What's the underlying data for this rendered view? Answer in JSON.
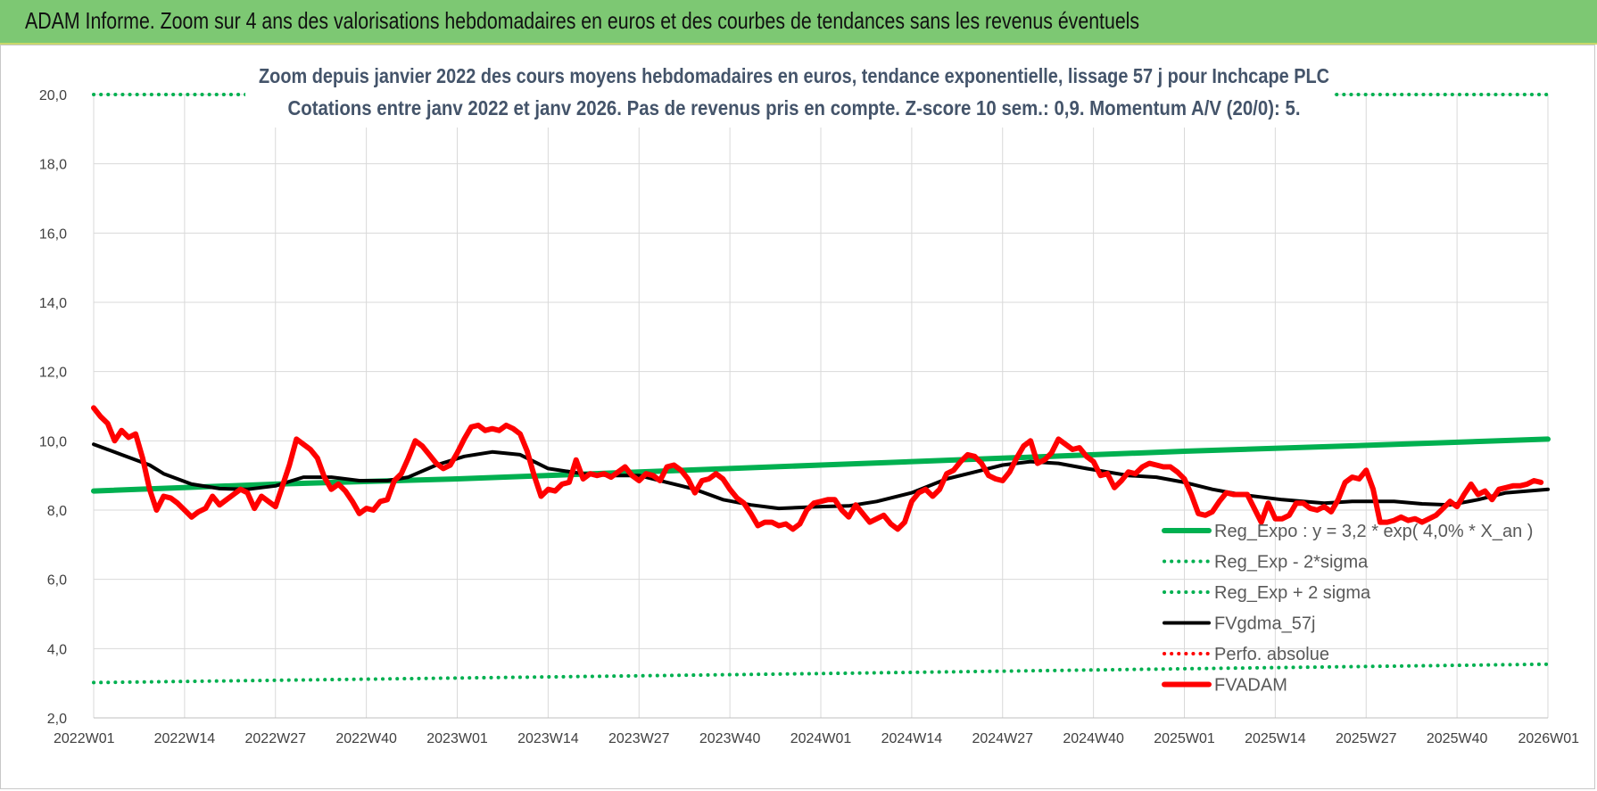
{
  "header": {
    "title": "ADAM Informe. Zoom sur 4 ans des valorisations hebdomadaires en euros et des courbes de tendances sans les revenus éventuels",
    "background": "#7dc873"
  },
  "chart_data": {
    "type": "line",
    "title": "Zoom depuis janvier 2022 des cours moyens hebdomadaires en euros, tendance exponentielle, lissage 57 j pour Inchcape PLC",
    "subtitle": "Cotations entre janv 2022 et janv 2026. Pas de revenus pris en compte. Z-score 10 sem.: 0,9. Momentum A/V (20/0): 5.",
    "xlabel": "",
    "ylabel": "",
    "ylim": [
      2.0,
      20.0
    ],
    "y_ticks": [
      "2,0",
      "4,0",
      "6,0",
      "8,0",
      "10,0",
      "12,0",
      "14,0",
      "16,0",
      "18,0",
      "20,0"
    ],
    "x_ticks": [
      "2022W01",
      "2022W14",
      "2022W27",
      "2022W40",
      "2023W01",
      "2023W14",
      "2023W27",
      "2023W40",
      "2024W01",
      "2024W14",
      "2024W27",
      "2024W40",
      "2025W01",
      "2025W14",
      "2025W27",
      "2025W40",
      "2026W01"
    ],
    "x_week_index": [
      0,
      13,
      26,
      39,
      52,
      65,
      78,
      91,
      104,
      117,
      130,
      143,
      156,
      169,
      182,
      195,
      208
    ],
    "grid": true,
    "legend_position": "bottom-right",
    "series": [
      {
        "name": "Reg_Expo : y = 3,2 * exp( 4,0% *  X_an )",
        "style": "solid-thick",
        "color": "#00b050",
        "points": [
          [
            0,
            8.55
          ],
          [
            26,
            8.75
          ],
          [
            52,
            8.9
          ],
          [
            78,
            9.1
          ],
          [
            104,
            9.3
          ],
          [
            130,
            9.5
          ],
          [
            156,
            9.7
          ],
          [
            182,
            9.87
          ],
          [
            208,
            10.05
          ]
        ]
      },
      {
        "name": "Reg_Exp - 2*sigma",
        "style": "dotted",
        "color": "#00b050",
        "points": [
          [
            0,
            3.02
          ],
          [
            52,
            3.15
          ],
          [
            104,
            3.28
          ],
          [
            156,
            3.42
          ],
          [
            208,
            3.55
          ]
        ]
      },
      {
        "name": "Reg_Exp + 2 sigma",
        "style": "dotted",
        "color": "#00b050",
        "points": [
          [
            0,
            20.0
          ],
          [
            208,
            20.0
          ]
        ]
      },
      {
        "name": "FVgdma_57j",
        "style": "solid",
        "color": "#000000",
        "points": [
          [
            0,
            9.9
          ],
          [
            4,
            9.6
          ],
          [
            8,
            9.3
          ],
          [
            10,
            9.05
          ],
          [
            14,
            8.75
          ],
          [
            18,
            8.62
          ],
          [
            22,
            8.6
          ],
          [
            26,
            8.7
          ],
          [
            30,
            8.95
          ],
          [
            34,
            8.95
          ],
          [
            38,
            8.85
          ],
          [
            42,
            8.85
          ],
          [
            45,
            8.95
          ],
          [
            49,
            9.3
          ],
          [
            53,
            9.55
          ],
          [
            57,
            9.68
          ],
          [
            61,
            9.6
          ],
          [
            65,
            9.2
          ],
          [
            70,
            9.05
          ],
          [
            74,
            9.0
          ],
          [
            78,
            9.0
          ],
          [
            82,
            8.8
          ],
          [
            86,
            8.6
          ],
          [
            90,
            8.3
          ],
          [
            94,
            8.15
          ],
          [
            98,
            8.05
          ],
          [
            104,
            8.1
          ],
          [
            108,
            8.12
          ],
          [
            112,
            8.25
          ],
          [
            117,
            8.5
          ],
          [
            122,
            8.9
          ],
          [
            126,
            9.1
          ],
          [
            130,
            9.3
          ],
          [
            134,
            9.4
          ],
          [
            138,
            9.35
          ],
          [
            142,
            9.2
          ],
          [
            148,
            9.0
          ],
          [
            152,
            8.95
          ],
          [
            156,
            8.8
          ],
          [
            160,
            8.6
          ],
          [
            164,
            8.45
          ],
          [
            170,
            8.3
          ],
          [
            176,
            8.2
          ],
          [
            180,
            8.25
          ],
          [
            186,
            8.25
          ],
          [
            190,
            8.18
          ],
          [
            194,
            8.15
          ],
          [
            198,
            8.3
          ],
          [
            202,
            8.5
          ],
          [
            208,
            8.6
          ]
        ]
      },
      {
        "name": "Perfo. absolue",
        "style": "dotted",
        "color": "#ff0000",
        "points": []
      },
      {
        "name": "FVADAM",
        "style": "solid-thick",
        "color": "#ff0000",
        "points": [
          [
            0,
            10.95
          ],
          [
            1,
            10.7
          ],
          [
            2,
            10.5
          ],
          [
            3,
            10.0
          ],
          [
            4,
            10.3
          ],
          [
            5,
            10.1
          ],
          [
            6,
            10.2
          ],
          [
            7,
            9.5
          ],
          [
            8,
            8.6
          ],
          [
            9,
            8.0
          ],
          [
            10,
            8.4
          ],
          [
            11,
            8.35
          ],
          [
            12,
            8.2
          ],
          [
            13,
            8.0
          ],
          [
            14,
            7.8
          ],
          [
            15,
            7.95
          ],
          [
            16,
            8.05
          ],
          [
            17,
            8.4
          ],
          [
            18,
            8.15
          ],
          [
            19,
            8.3
          ],
          [
            20,
            8.45
          ],
          [
            21,
            8.6
          ],
          [
            22,
            8.5
          ],
          [
            23,
            8.05
          ],
          [
            24,
            8.4
          ],
          [
            25,
            8.25
          ],
          [
            26,
            8.1
          ],
          [
            27,
            8.7
          ],
          [
            28,
            9.3
          ],
          [
            29,
            10.05
          ],
          [
            30,
            9.9
          ],
          [
            31,
            9.75
          ],
          [
            32,
            9.5
          ],
          [
            33,
            8.95
          ],
          [
            34,
            8.6
          ],
          [
            35,
            8.75
          ],
          [
            36,
            8.55
          ],
          [
            37,
            8.25
          ],
          [
            38,
            7.9
          ],
          [
            39,
            8.05
          ],
          [
            40,
            8.0
          ],
          [
            41,
            8.25
          ],
          [
            42,
            8.3
          ],
          [
            43,
            8.85
          ],
          [
            44,
            9.05
          ],
          [
            45,
            9.5
          ],
          [
            46,
            10.0
          ],
          [
            47,
            9.85
          ],
          [
            48,
            9.6
          ],
          [
            49,
            9.35
          ],
          [
            50,
            9.2
          ],
          [
            51,
            9.3
          ],
          [
            52,
            9.65
          ],
          [
            53,
            10.05
          ],
          [
            54,
            10.4
          ],
          [
            55,
            10.45
          ],
          [
            56,
            10.3
          ],
          [
            57,
            10.35
          ],
          [
            58,
            10.3
          ],
          [
            59,
            10.45
          ],
          [
            60,
            10.35
          ],
          [
            61,
            10.2
          ],
          [
            62,
            9.7
          ],
          [
            63,
            9.0
          ],
          [
            64,
            8.4
          ],
          [
            65,
            8.6
          ],
          [
            66,
            8.55
          ],
          [
            67,
            8.75
          ],
          [
            68,
            8.8
          ],
          [
            69,
            9.45
          ],
          [
            70,
            8.9
          ],
          [
            71,
            9.05
          ],
          [
            72,
            9.0
          ],
          [
            73,
            9.05
          ],
          [
            74,
            8.95
          ],
          [
            75,
            9.1
          ],
          [
            76,
            9.25
          ],
          [
            77,
            9.0
          ],
          [
            78,
            8.85
          ],
          [
            79,
            9.05
          ],
          [
            80,
            9.0
          ],
          [
            81,
            8.85
          ],
          [
            82,
            9.25
          ],
          [
            83,
            9.3
          ],
          [
            84,
            9.15
          ],
          [
            85,
            8.9
          ],
          [
            86,
            8.5
          ],
          [
            87,
            8.85
          ],
          [
            88,
            8.9
          ],
          [
            89,
            9.05
          ],
          [
            90,
            8.9
          ],
          [
            91,
            8.6
          ],
          [
            92,
            8.35
          ],
          [
            93,
            8.2
          ],
          [
            94,
            7.9
          ],
          [
            95,
            7.55
          ],
          [
            96,
            7.65
          ],
          [
            97,
            7.65
          ],
          [
            98,
            7.55
          ],
          [
            99,
            7.6
          ],
          [
            100,
            7.45
          ],
          [
            101,
            7.6
          ],
          [
            102,
            8.0
          ],
          [
            103,
            8.2
          ],
          [
            104,
            8.25
          ],
          [
            105,
            8.3
          ],
          [
            106,
            8.3
          ],
          [
            107,
            8.0
          ],
          [
            108,
            7.8
          ],
          [
            109,
            8.15
          ],
          [
            110,
            7.9
          ],
          [
            111,
            7.65
          ],
          [
            112,
            7.75
          ],
          [
            113,
            7.85
          ],
          [
            114,
            7.6
          ],
          [
            115,
            7.45
          ],
          [
            116,
            7.65
          ],
          [
            117,
            8.25
          ],
          [
            118,
            8.5
          ],
          [
            119,
            8.6
          ],
          [
            120,
            8.4
          ],
          [
            121,
            8.6
          ],
          [
            122,
            9.05
          ],
          [
            123,
            9.15
          ],
          [
            124,
            9.4
          ],
          [
            125,
            9.6
          ],
          [
            126,
            9.55
          ],
          [
            127,
            9.35
          ],
          [
            128,
            9.0
          ],
          [
            129,
            8.9
          ],
          [
            130,
            8.85
          ],
          [
            131,
            9.1
          ],
          [
            132,
            9.5
          ],
          [
            133,
            9.85
          ],
          [
            134,
            10.0
          ],
          [
            135,
            9.35
          ],
          [
            136,
            9.45
          ],
          [
            137,
            9.65
          ],
          [
            138,
            10.05
          ],
          [
            139,
            9.9
          ],
          [
            140,
            9.75
          ],
          [
            141,
            9.8
          ],
          [
            142,
            9.55
          ],
          [
            143,
            9.4
          ],
          [
            144,
            9.0
          ],
          [
            145,
            9.05
          ],
          [
            146,
            8.65
          ],
          [
            147,
            8.85
          ],
          [
            148,
            9.1
          ],
          [
            149,
            9.05
          ],
          [
            150,
            9.25
          ],
          [
            151,
            9.35
          ],
          [
            152,
            9.3
          ],
          [
            153,
            9.25
          ],
          [
            154,
            9.25
          ],
          [
            155,
            9.1
          ],
          [
            156,
            8.9
          ],
          [
            157,
            8.45
          ],
          [
            158,
            7.9
          ],
          [
            159,
            7.85
          ],
          [
            160,
            7.95
          ],
          [
            161,
            8.25
          ],
          [
            162,
            8.5
          ],
          [
            163,
            8.45
          ],
          [
            164,
            8.45
          ],
          [
            165,
            8.45
          ],
          [
            166,
            8.05
          ],
          [
            167,
            7.65
          ],
          [
            168,
            8.2
          ],
          [
            169,
            7.75
          ],
          [
            170,
            7.75
          ],
          [
            171,
            7.85
          ],
          [
            172,
            8.2
          ],
          [
            173,
            8.2
          ],
          [
            174,
            8.05
          ],
          [
            175,
            8.0
          ],
          [
            176,
            8.1
          ],
          [
            177,
            7.95
          ],
          [
            178,
            8.3
          ],
          [
            179,
            8.8
          ],
          [
            180,
            8.95
          ],
          [
            181,
            8.9
          ],
          [
            182,
            9.15
          ],
          [
            183,
            8.6
          ],
          [
            184,
            7.65
          ],
          [
            185,
            7.65
          ],
          [
            186,
            7.7
          ],
          [
            187,
            7.8
          ],
          [
            188,
            7.7
          ],
          [
            189,
            7.75
          ],
          [
            190,
            7.65
          ],
          [
            191,
            7.75
          ],
          [
            192,
            7.85
          ],
          [
            193,
            8.05
          ],
          [
            194,
            8.25
          ],
          [
            195,
            8.1
          ],
          [
            196,
            8.45
          ],
          [
            197,
            8.75
          ],
          [
            198,
            8.45
          ],
          [
            199,
            8.55
          ],
          [
            200,
            8.3
          ],
          [
            201,
            8.6
          ],
          [
            202,
            8.65
          ],
          [
            203,
            8.7
          ],
          [
            204,
            8.7
          ],
          [
            205,
            8.75
          ],
          [
            206,
            8.85
          ],
          [
            207,
            8.8
          ]
        ]
      }
    ]
  }
}
